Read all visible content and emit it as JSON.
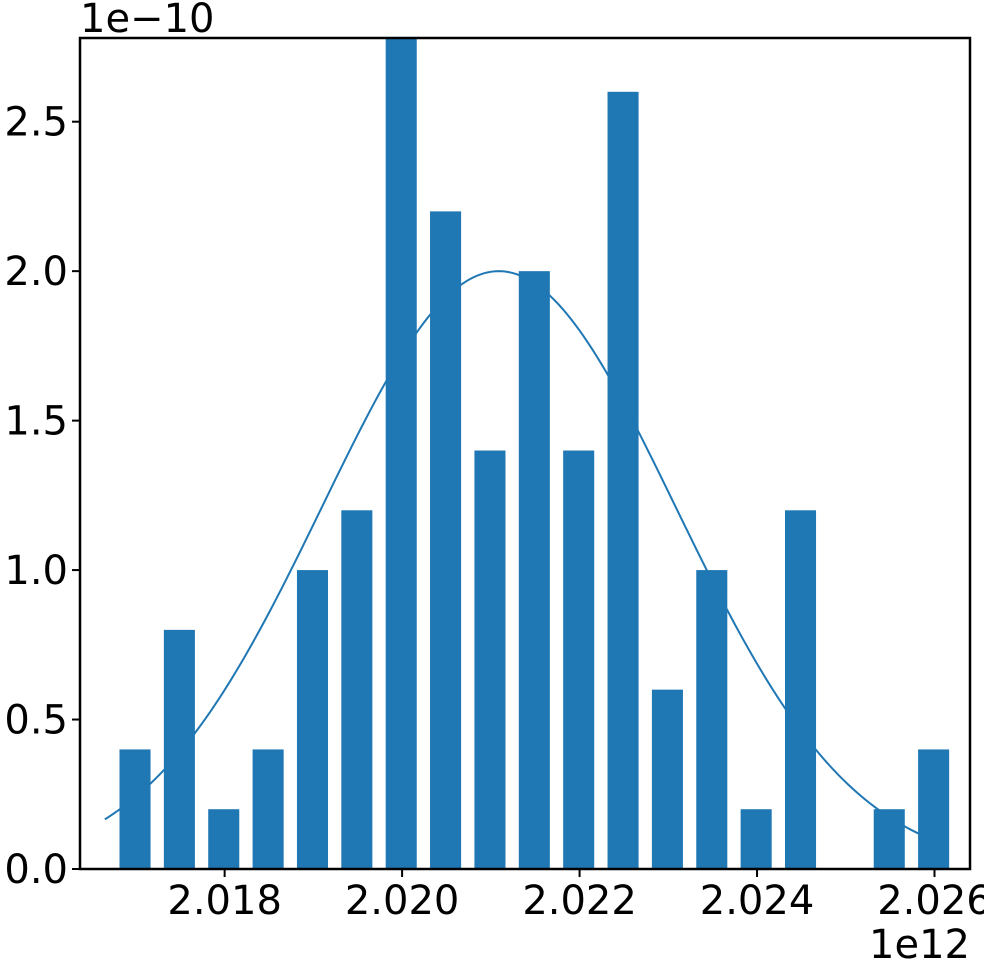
{
  "chart_data": {
    "type": "bar",
    "title": "",
    "xlabel": "",
    "ylabel": "",
    "x_offset_label": "1e12",
    "y_offset_label": "1e−10",
    "xlim": [
      2.01637,
      2.0264
    ],
    "ylim": [
      0,
      2.78
    ],
    "x_ticks": [
      {
        "value": 2.018,
        "label": "2.018"
      },
      {
        "value": 2.02,
        "label": "2.020"
      },
      {
        "value": 2.022,
        "label": "2.022"
      },
      {
        "value": 2.024,
        "label": "2.024"
      },
      {
        "value": 2.026,
        "label": "2.026"
      }
    ],
    "y_ticks": [
      {
        "value": 0.0,
        "label": "0.0"
      },
      {
        "value": 0.5,
        "label": "0.5"
      },
      {
        "value": 1.0,
        "label": "1.0"
      },
      {
        "value": 1.5,
        "label": "1.5"
      },
      {
        "value": 2.0,
        "label": "2.0"
      },
      {
        "value": 2.5,
        "label": "2.5"
      }
    ],
    "bar_width": 0.00035,
    "bars": [
      {
        "x": 2.01699,
        "value": 0.4
      },
      {
        "x": 2.01749,
        "value": 0.8
      },
      {
        "x": 2.01799,
        "value": 0.2
      },
      {
        "x": 2.01849,
        "value": 0.4
      },
      {
        "x": 2.01899,
        "value": 1.0
      },
      {
        "x": 2.01949,
        "value": 1.2
      },
      {
        "x": 2.01999,
        "value": 2.8
      },
      {
        "x": 2.02049,
        "value": 2.2
      },
      {
        "x": 2.02099,
        "value": 1.4
      },
      {
        "x": 2.02149,
        "value": 2.0
      },
      {
        "x": 2.02199,
        "value": 1.4
      },
      {
        "x": 2.02249,
        "value": 2.6
      },
      {
        "x": 2.02299,
        "value": 0.6
      },
      {
        "x": 2.02349,
        "value": 1.0
      },
      {
        "x": 2.02399,
        "value": 0.2
      },
      {
        "x": 2.02449,
        "value": 1.2
      },
      {
        "x": 2.02549,
        "value": 0.2
      },
      {
        "x": 2.02599,
        "value": 0.4
      }
    ],
    "fit_curve": {
      "type": "normal",
      "mean": 2.02109,
      "std": 0.00199,
      "x_range": [
        2.01665,
        2.02612
      ],
      "peak": 2.0
    },
    "colors": {
      "bar": "#1f77b4",
      "curve": "#1f77b4",
      "axis": "#000000"
    },
    "grid": false,
    "legend": "none"
  }
}
